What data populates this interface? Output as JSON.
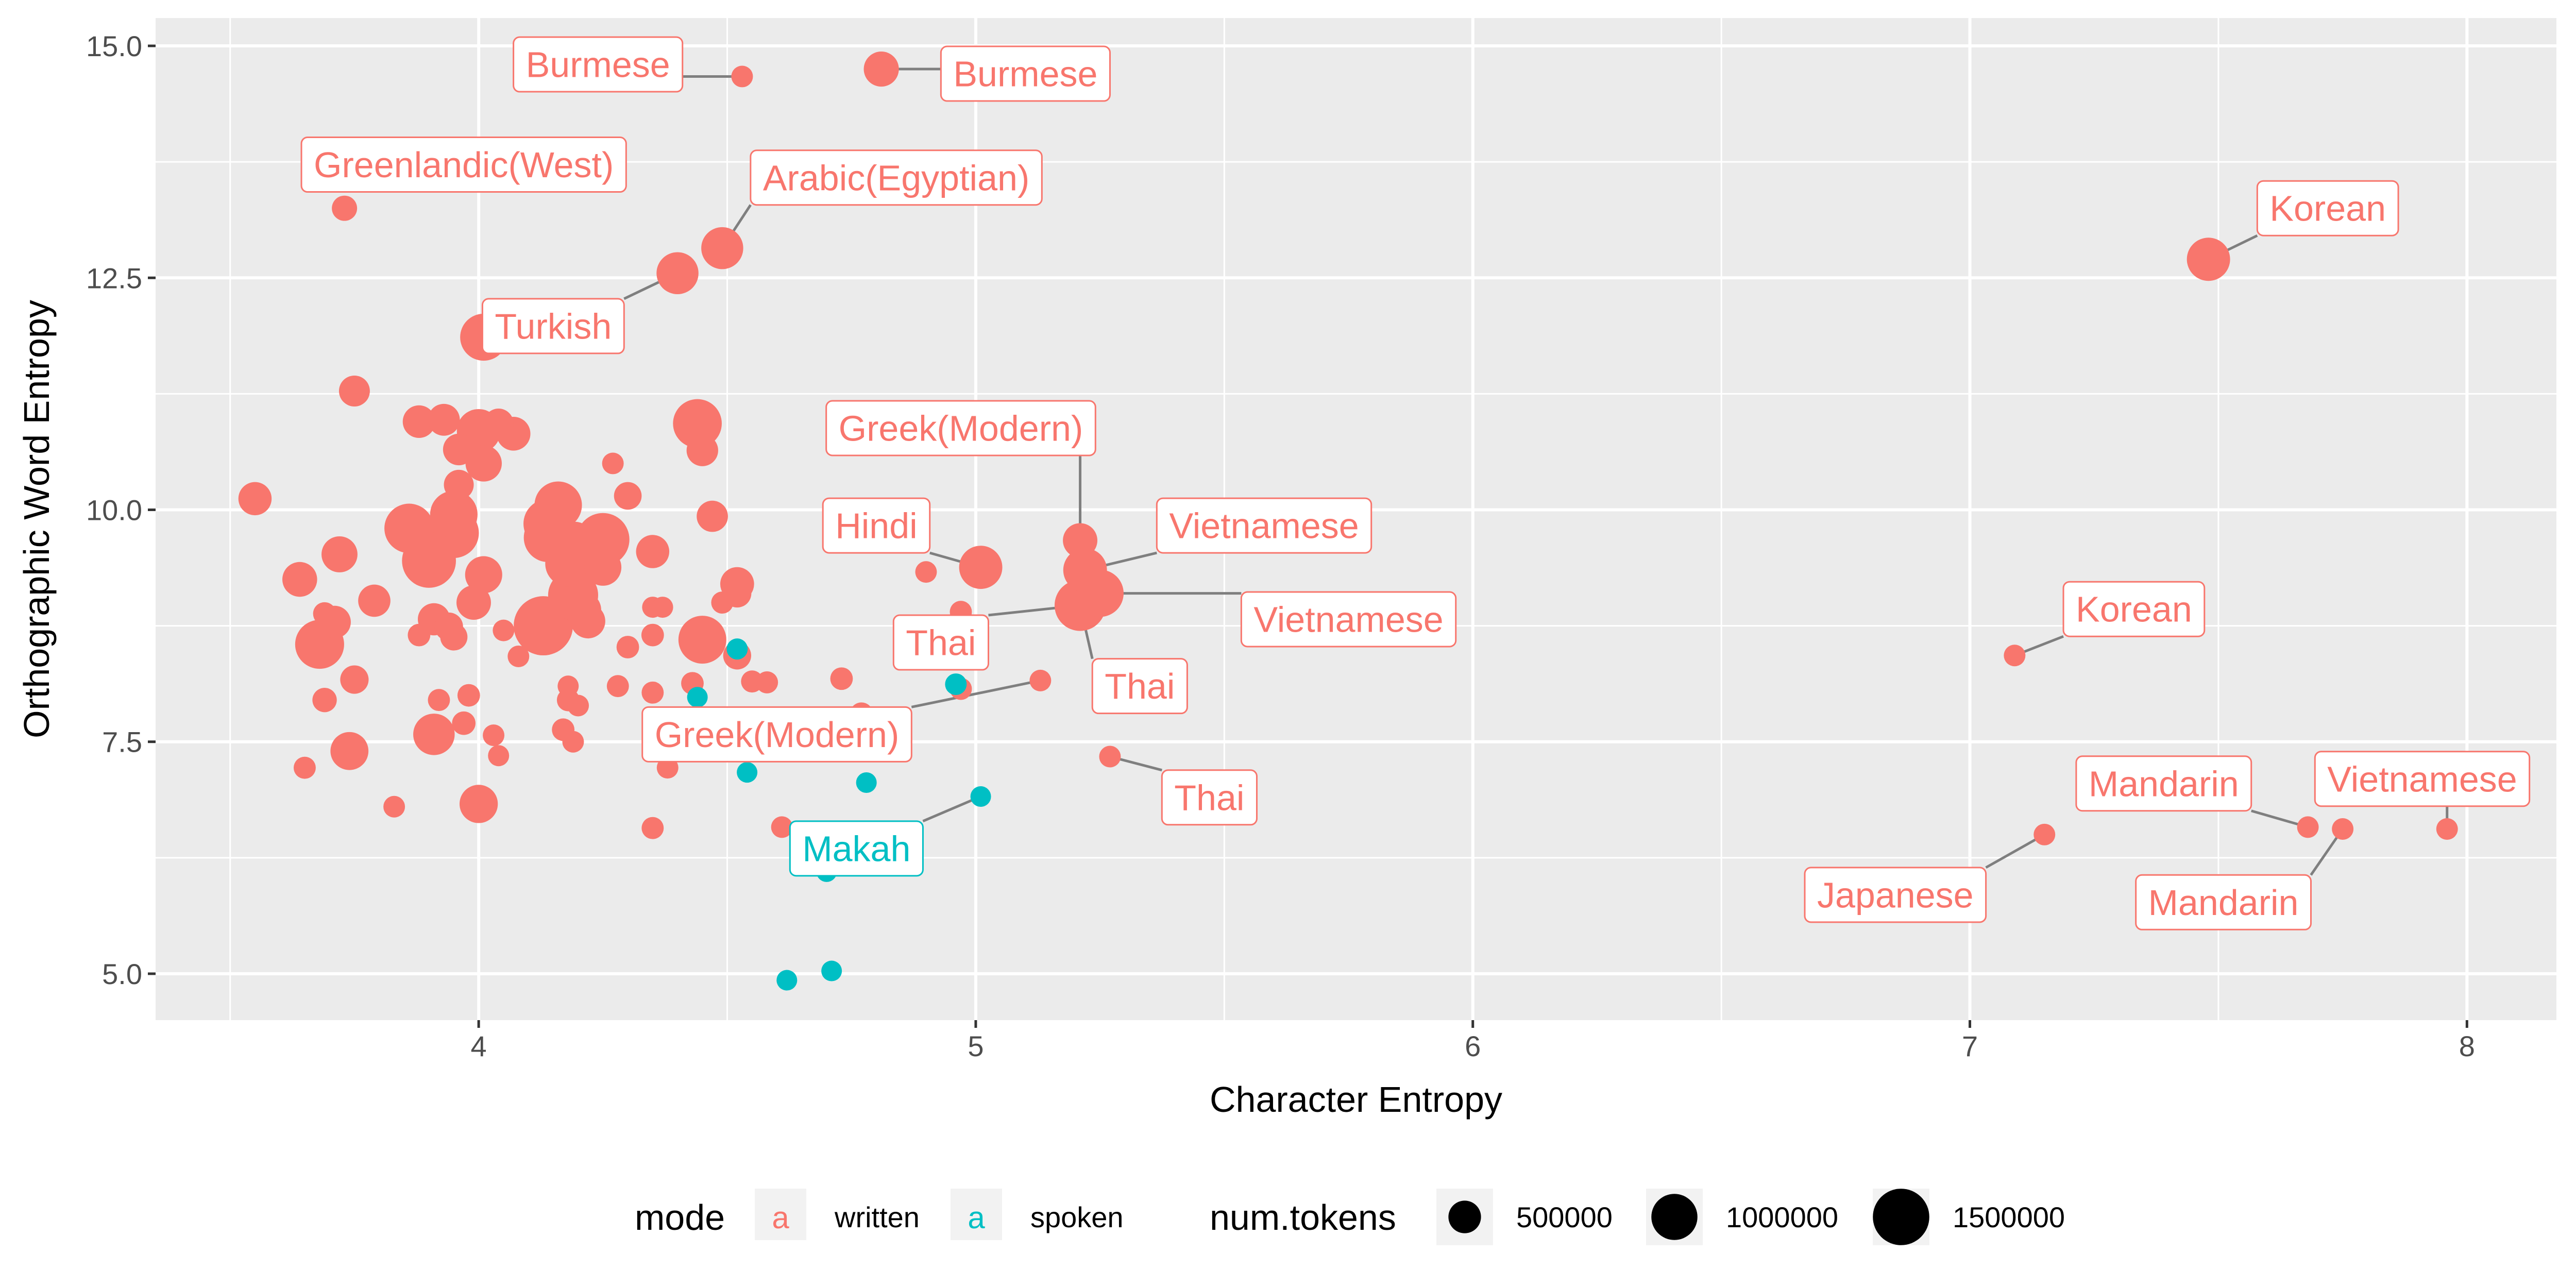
{
  "chart_data": {
    "type": "scatter",
    "title": "",
    "xlabel": "Character Entropy",
    "ylabel": "Orthographic Word Entropy",
    "xlim": [
      3.35,
      8.18
    ],
    "ylim": [
      4.5,
      15.3
    ],
    "x_ticks": [
      4,
      5,
      6,
      7,
      8
    ],
    "y_ticks": [
      5.0,
      7.5,
      10.0,
      12.5,
      15.0
    ],
    "x_tick_labels": [
      "4",
      "5",
      "6",
      "7",
      "8"
    ],
    "y_tick_labels": [
      "5.0",
      "7.5",
      "10.0",
      "12.5",
      "15.0"
    ],
    "grid": true,
    "legend_position": "bottom",
    "colors": {
      "written": "#F8766D",
      "spoken": "#00BFC4",
      "panel": "#EBEBEB",
      "grid": "#FFFFFF",
      "connector": "#7F7F7F",
      "point_key": "#000000"
    },
    "legend": {
      "mode_title": "mode",
      "mode_items": [
        {
          "label": "written",
          "glyph": "a",
          "mode": "written"
        },
        {
          "label": "spoken",
          "glyph": "a",
          "mode": "spoken"
        }
      ],
      "size_title": "num.tokens",
      "size_items": [
        {
          "label": "500000",
          "value": 500000
        },
        {
          "label": "1000000",
          "value": 1000000
        },
        {
          "label": "1500000",
          "value": 1500000
        }
      ]
    },
    "series": [
      {
        "name": "written",
        "points": [
          {
            "x": 4.53,
            "y": 14.67,
            "size": 220000
          },
          {
            "x": 4.81,
            "y": 14.75,
            "size": 580000
          },
          {
            "x": 3.73,
            "y": 13.25,
            "size": 300000
          },
          {
            "x": 4.49,
            "y": 12.82,
            "size": 830000
          },
          {
            "x": 4.4,
            "y": 12.55,
            "size": 830000
          },
          {
            "x": 4.01,
            "y": 11.86,
            "size": 1040000
          },
          {
            "x": 7.48,
            "y": 12.7,
            "size": 880000
          },
          {
            "x": 3.75,
            "y": 11.28,
            "size": 450000
          },
          {
            "x": 3.55,
            "y": 10.12,
            "size": 520000
          },
          {
            "x": 3.88,
            "y": 10.95,
            "size": 500000
          },
          {
            "x": 3.93,
            "y": 10.97,
            "size": 480000
          },
          {
            "x": 4.0,
            "y": 10.85,
            "size": 900000
          },
          {
            "x": 4.04,
            "y": 10.93,
            "size": 420000
          },
          {
            "x": 4.07,
            "y": 10.82,
            "size": 540000
          },
          {
            "x": 3.96,
            "y": 10.65,
            "size": 470000
          },
          {
            "x": 4.01,
            "y": 10.5,
            "size": 620000
          },
          {
            "x": 3.96,
            "y": 10.27,
            "size": 420000
          },
          {
            "x": 4.44,
            "y": 10.93,
            "size": 1120000
          },
          {
            "x": 4.45,
            "y": 10.64,
            "size": 470000
          },
          {
            "x": 4.27,
            "y": 10.5,
            "size": 220000
          },
          {
            "x": 4.3,
            "y": 10.15,
            "size": 360000
          },
          {
            "x": 3.64,
            "y": 9.25,
            "size": 570000
          },
          {
            "x": 3.72,
            "y": 9.52,
            "size": 610000
          },
          {
            "x": 3.86,
            "y": 9.8,
            "size": 1150000
          },
          {
            "x": 3.95,
            "y": 9.95,
            "size": 1060000
          },
          {
            "x": 3.95,
            "y": 9.75,
            "size": 1180000
          },
          {
            "x": 3.9,
            "y": 9.45,
            "size": 1370000
          },
          {
            "x": 4.01,
            "y": 9.3,
            "size": 650000
          },
          {
            "x": 3.99,
            "y": 9.0,
            "size": 560000
          },
          {
            "x": 4.16,
            "y": 10.05,
            "size": 1060000
          },
          {
            "x": 4.14,
            "y": 9.85,
            "size": 1160000
          },
          {
            "x": 4.14,
            "y": 9.7,
            "size": 1130000
          },
          {
            "x": 4.19,
            "y": 9.6,
            "size": 1210000
          },
          {
            "x": 4.18,
            "y": 9.42,
            "size": 990000
          },
          {
            "x": 4.25,
            "y": 9.68,
            "size": 1320000
          },
          {
            "x": 4.25,
            "y": 9.38,
            "size": 640000
          },
          {
            "x": 4.19,
            "y": 9.08,
            "size": 1180000
          },
          {
            "x": 4.21,
            "y": 8.92,
            "size": 620000
          },
          {
            "x": 4.22,
            "y": 8.8,
            "size": 560000
          },
          {
            "x": 4.35,
            "y": 9.55,
            "size": 520000
          },
          {
            "x": 4.47,
            "y": 9.93,
            "size": 460000
          },
          {
            "x": 4.52,
            "y": 9.2,
            "size": 540000
          },
          {
            "x": 4.52,
            "y": 9.1,
            "size": 380000
          },
          {
            "x": 4.49,
            "y": 9.0,
            "size": 230000
          },
          {
            "x": 4.13,
            "y": 8.75,
            "size": 1650000
          },
          {
            "x": 4.45,
            "y": 8.6,
            "size": 1080000
          },
          {
            "x": 3.79,
            "y": 9.02,
            "size": 490000
          },
          {
            "x": 3.68,
            "y": 8.55,
            "size": 1130000
          },
          {
            "x": 3.71,
            "y": 8.79,
            "size": 500000
          },
          {
            "x": 3.69,
            "y": 8.88,
            "size": 250000
          },
          {
            "x": 3.91,
            "y": 8.82,
            "size": 490000
          },
          {
            "x": 3.94,
            "y": 8.74,
            "size": 380000
          },
          {
            "x": 3.95,
            "y": 8.63,
            "size": 350000
          },
          {
            "x": 3.88,
            "y": 8.65,
            "size": 240000
          },
          {
            "x": 4.05,
            "y": 8.7,
            "size": 220000
          },
          {
            "x": 4.08,
            "y": 8.42,
            "size": 220000
          },
          {
            "x": 4.35,
            "y": 8.95,
            "size": 210000
          },
          {
            "x": 4.37,
            "y": 8.95,
            "size": 210000
          },
          {
            "x": 4.3,
            "y": 8.52,
            "size": 240000
          },
          {
            "x": 4.35,
            "y": 8.65,
            "size": 240000
          },
          {
            "x": 4.52,
            "y": 8.43,
            "size": 370000
          },
          {
            "x": 4.9,
            "y": 9.33,
            "size": 220000
          },
          {
            "x": 4.97,
            "y": 8.9,
            "size": 230000
          },
          {
            "x": 5.01,
            "y": 9.38,
            "size": 880000
          },
          {
            "x": 5.21,
            "y": 9.67,
            "size": 560000
          },
          {
            "x": 5.22,
            "y": 9.35,
            "size": 900000
          },
          {
            "x": 5.25,
            "y": 9.1,
            "size": 1050000
          },
          {
            "x": 5.21,
            "y": 8.97,
            "size": 1230000
          },
          {
            "x": 3.69,
            "y": 7.95,
            "size": 280000
          },
          {
            "x": 3.75,
            "y": 8.17,
            "size": 380000
          },
          {
            "x": 3.74,
            "y": 7.4,
            "size": 680000
          },
          {
            "x": 3.65,
            "y": 7.22,
            "size": 230000
          },
          {
            "x": 3.83,
            "y": 6.8,
            "size": 220000
          },
          {
            "x": 3.91,
            "y": 7.58,
            "size": 810000
          },
          {
            "x": 3.92,
            "y": 7.95,
            "size": 230000
          },
          {
            "x": 3.97,
            "y": 7.7,
            "size": 260000
          },
          {
            "x": 3.98,
            "y": 8.0,
            "size": 240000
          },
          {
            "x": 4.03,
            "y": 7.57,
            "size": 220000
          },
          {
            "x": 4.04,
            "y": 7.35,
            "size": 210000
          },
          {
            "x": 4.0,
            "y": 6.83,
            "size": 690000
          },
          {
            "x": 4.17,
            "y": 7.63,
            "size": 240000
          },
          {
            "x": 4.18,
            "y": 7.95,
            "size": 240000
          },
          {
            "x": 4.19,
            "y": 7.5,
            "size": 220000
          },
          {
            "x": 4.18,
            "y": 8.1,
            "size": 210000
          },
          {
            "x": 4.2,
            "y": 7.89,
            "size": 220000
          },
          {
            "x": 4.28,
            "y": 8.1,
            "size": 230000
          },
          {
            "x": 4.35,
            "y": 8.03,
            "size": 230000
          },
          {
            "x": 4.38,
            "y": 7.22,
            "size": 220000
          },
          {
            "x": 4.35,
            "y": 6.57,
            "size": 230000
          },
          {
            "x": 4.43,
            "y": 8.13,
            "size": 240000
          },
          {
            "x": 4.55,
            "y": 8.15,
            "size": 230000
          },
          {
            "x": 4.58,
            "y": 8.14,
            "size": 230000
          },
          {
            "x": 4.73,
            "y": 8.18,
            "size": 240000
          },
          {
            "x": 4.77,
            "y": 7.8,
            "size": 250000
          },
          {
            "x": 4.97,
            "y": 8.07,
            "size": 230000
          },
          {
            "x": 5.13,
            "y": 8.16,
            "size": 220000
          },
          {
            "x": 5.27,
            "y": 7.34,
            "size": 220000
          },
          {
            "x": 4.61,
            "y": 6.58,
            "size": 220000
          },
          {
            "x": 7.09,
            "y": 8.43,
            "size": 220000
          },
          {
            "x": 7.15,
            "y": 6.5,
            "size": 220000
          },
          {
            "x": 7.68,
            "y": 6.58,
            "size": 220000
          },
          {
            "x": 7.75,
            "y": 6.56,
            "size": 220000
          },
          {
            "x": 7.96,
            "y": 6.56,
            "size": 220000
          }
        ]
      },
      {
        "name": "spoken",
        "points": [
          {
            "x": 4.52,
            "y": 8.5,
            "size": 210000
          },
          {
            "x": 4.44,
            "y": 7.98,
            "size": 200000
          },
          {
            "x": 4.54,
            "y": 7.17,
            "size": 200000
          },
          {
            "x": 4.96,
            "y": 8.12,
            "size": 220000
          },
          {
            "x": 4.78,
            "y": 7.06,
            "size": 200000
          },
          {
            "x": 5.01,
            "y": 6.91,
            "size": 200000
          },
          {
            "x": 4.7,
            "y": 6.1,
            "size": 200000
          },
          {
            "x": 4.62,
            "y": 4.93,
            "size": 200000
          },
          {
            "x": 4.71,
            "y": 5.03,
            "size": 200000
          }
        ]
      }
    ],
    "annotations": [
      {
        "text": "Burmese",
        "mode": "written",
        "lx": 4.24,
        "ly": 14.8,
        "px": 4.53,
        "py": 14.67
      },
      {
        "text": "Burmese",
        "mode": "written",
        "lx": 5.1,
        "ly": 14.7,
        "px": 4.81,
        "py": 14.75
      },
      {
        "text": "Greenlandic(West)",
        "mode": "written",
        "lx": 3.97,
        "ly": 13.72,
        "px": 3.73,
        "py": 13.25
      },
      {
        "text": "Arabic(Egyptian)",
        "mode": "written",
        "lx": 4.84,
        "ly": 13.58,
        "px": 4.49,
        "py": 12.82
      },
      {
        "text": "Turkish",
        "mode": "written",
        "lx": 4.15,
        "ly": 11.98,
        "px": 4.4,
        "py": 12.55
      },
      {
        "text": "Korean",
        "mode": "written",
        "lx": 7.72,
        "ly": 13.25,
        "px": 7.48,
        "py": 12.7
      },
      {
        "text": "Greek(Modern)",
        "mode": "written",
        "lx": 4.97,
        "ly": 10.88,
        "px": 5.21,
        "py": 9.67
      },
      {
        "text": "Hindi",
        "mode": "written",
        "lx": 4.8,
        "ly": 9.83,
        "px": 5.01,
        "py": 9.38
      },
      {
        "text": "Vietnamese",
        "mode": "written",
        "lx": 5.58,
        "ly": 9.83,
        "px": 5.22,
        "py": 9.35
      },
      {
        "text": "Vietnamese",
        "mode": "written",
        "lx": 5.75,
        "ly": 8.82,
        "px": 5.25,
        "py": 9.1
      },
      {
        "text": "Thai",
        "mode": "written",
        "lx": 4.93,
        "ly": 8.57,
        "px": 5.21,
        "py": 8.97
      },
      {
        "text": "Thai",
        "mode": "written",
        "lx": 5.33,
        "ly": 8.1,
        "px": 5.21,
        "py": 8.97
      },
      {
        "text": "Greek(Modern)",
        "mode": "written",
        "lx": 4.6,
        "ly": 7.58,
        "px": 5.13,
        "py": 8.16
      },
      {
        "text": "Thai",
        "mode": "written",
        "lx": 5.47,
        "ly": 6.9,
        "px": 5.27,
        "py": 7.34
      },
      {
        "text": "Korean",
        "mode": "written",
        "lx": 7.33,
        "ly": 8.93,
        "px": 7.09,
        "py": 8.43
      },
      {
        "text": "Mandarin",
        "mode": "written",
        "lx": 7.39,
        "ly": 7.05,
        "px": 7.68,
        "py": 6.58
      },
      {
        "text": "Vietnamese",
        "mode": "written",
        "lx": 7.91,
        "ly": 7.1,
        "px": 7.96,
        "py": 6.56
      },
      {
        "text": "Japanese",
        "mode": "written",
        "lx": 6.85,
        "ly": 5.85,
        "px": 7.15,
        "py": 6.5
      },
      {
        "text": "Mandarin",
        "mode": "written",
        "lx": 7.51,
        "ly": 5.77,
        "px": 7.75,
        "py": 6.56
      },
      {
        "text": "Makah",
        "mode": "spoken",
        "lx": 4.76,
        "ly": 6.35,
        "px": 5.01,
        "py": 6.91
      }
    ]
  }
}
